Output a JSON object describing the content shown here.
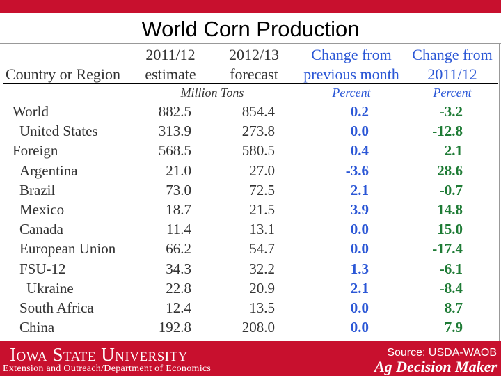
{
  "slide": {
    "title": "World Corn Production"
  },
  "table": {
    "headers": {
      "col0": "Country or Region",
      "col1_line1": "2011/12",
      "col1_line2": "estimate",
      "col2_line1": "2012/13",
      "col2_line2": "forecast",
      "col3_line1": "Change from",
      "col3_line2": "previous month",
      "col4_line1": "Change from",
      "col4_line2": "2011/12"
    },
    "units": {
      "values": "Million Tons",
      "pct1": "Percent",
      "pct2": "Percent"
    },
    "rows": [
      {
        "name": "World",
        "v1": "882.5",
        "v2": "854.4",
        "p1": "0.2",
        "p2": "-3.2"
      },
      {
        "name": "United States",
        "v1": "313.9",
        "v2": "273.8",
        "p1": "0.0",
        "p2": "-12.8"
      },
      {
        "name": "Foreign",
        "v1": "568.5",
        "v2": "580.5",
        "p1": "0.4",
        "p2": "2.1"
      },
      {
        "name": "Argentina",
        "v1": "21.0",
        "v2": "27.0",
        "p1": "-3.6",
        "p2": "28.6"
      },
      {
        "name": "Brazil",
        "v1": "73.0",
        "v2": "72.5",
        "p1": "2.1",
        "p2": "-0.7"
      },
      {
        "name": "Mexico",
        "v1": "18.7",
        "v2": "21.5",
        "p1": "3.9",
        "p2": "14.8"
      },
      {
        "name": "Canada",
        "v1": "11.4",
        "v2": "13.1",
        "p1": "0.0",
        "p2": "15.0"
      },
      {
        "name": "European Union",
        "v1": "66.2",
        "v2": "54.7",
        "p1": "0.0",
        "p2": "-17.4"
      },
      {
        "name": "FSU-12",
        "v1": "34.3",
        "v2": "32.2",
        "p1": "1.3",
        "p2": "-6.1"
      },
      {
        "name": "Ukraine",
        "v1": "22.8",
        "v2": "20.9",
        "p1": "2.1",
        "p2": "-8.4"
      },
      {
        "name": "South Africa",
        "v1": "12.4",
        "v2": "13.5",
        "p1": "0.0",
        "p2": "8.7"
      },
      {
        "name": "China",
        "v1": "192.8",
        "v2": "208.0",
        "p1": "0.0",
        "p2": "7.9"
      }
    ]
  },
  "footer": {
    "logo_text": "Iowa State University",
    "department": "Extension and Outreach/Department of Economics",
    "source": "Source: USDA-WAOB",
    "brand": "Ag Decision Maker"
  },
  "colors": {
    "accent": "#c8102e",
    "percent_change_month": "#2b57d6",
    "percent_change_year": "#1e7b35"
  }
}
